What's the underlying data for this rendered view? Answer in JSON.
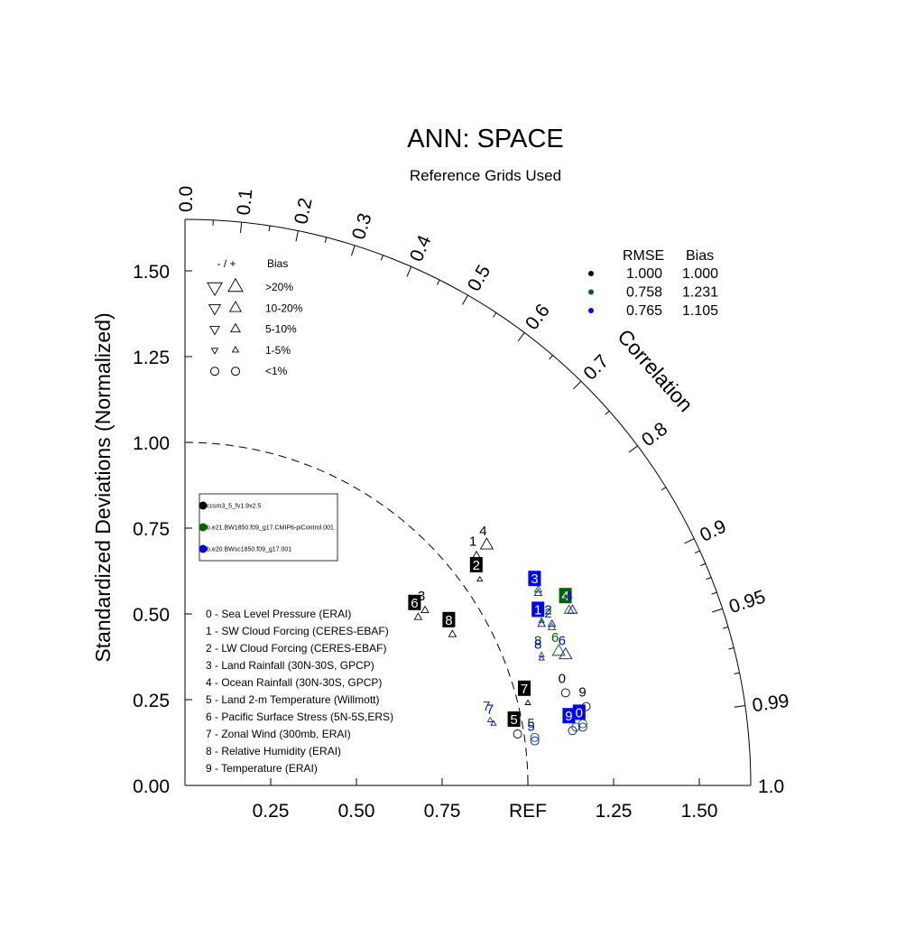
{
  "chart_data": {
    "type": "scatter",
    "title": "ANN: SPACE",
    "subtitle": "Reference Grids Used",
    "ylabel": "Standardized Deviations (Normalized)",
    "x_ticks": [
      "0.25",
      "0.50",
      "0.75",
      "REF",
      "1.25",
      "1.50"
    ],
    "y_ticks": [
      "0.00",
      "0.25",
      "0.50",
      "0.75",
      "1.00",
      "1.25",
      "1.50"
    ],
    "x_tick_values": [
      0.25,
      0.5,
      0.75,
      1.0,
      1.25,
      1.5
    ],
    "y_tick_values": [
      0,
      0.25,
      0.5,
      0.75,
      1.0,
      1.25,
      1.5
    ],
    "std_max": 1.65,
    "corr_label": "Correlation",
    "corr_ticks": [
      "0.0",
      "0.1",
      "0.2",
      "0.3",
      "0.4",
      "0.5",
      "0.6",
      "0.7",
      "0.8",
      "0.9",
      "0.95",
      "0.99",
      "1.0"
    ],
    "corr_values": [
      0.0,
      0.1,
      0.2,
      0.3,
      0.4,
      0.5,
      0.6,
      0.7,
      0.8,
      0.9,
      0.95,
      0.99,
      1.0
    ],
    "ref_arc_radius": 1.0,
    "bias_legend": {
      "header_sign": "- / +",
      "header_bias": "Bias",
      "rows": [
        ">20%",
        "10-20%",
        "5-10%",
        "1-5%",
        "<1%"
      ]
    },
    "stats_legend": {
      "header_rmse": "RMSE",
      "header_bias": "Bias",
      "rows": [
        {
          "color": "#000000",
          "rmse": "1.000",
          "bias": "1.000"
        },
        {
          "color": "#006400",
          "rmse": "0.758",
          "bias": "1.231"
        },
        {
          "color": "#0000ff",
          "rmse": "0.765",
          "bias": "1.105"
        }
      ]
    },
    "cases": [
      {
        "name": "ccsm3_5_fv1.9x2.5",
        "color": "#000000"
      },
      {
        "name": "b.e21.BW1850.f09_g17.CMIP6-piControl.001",
        "color": "#006400"
      },
      {
        "name": "b.e20.BWsc1850.f09_g17.001",
        "color": "#0000ff"
      }
    ],
    "variables": [
      "0 - Sea Level Pressure (ERAI)",
      "1 - SW Cloud Forcing (CERES-EBAF)",
      "2 - LW Cloud Forcing (CERES-EBAF)",
      "3 - Land Rainfall (30N-30S, GPCP)",
      "4 - Ocean Rainfall (30N-30S, GPCP)",
      "5 - Land 2-m Temperature (Willmott)",
      "6 - Pacific Surface Stress (5N-5S,ERS)",
      "7 - Zonal Wind (300mb, ERAI)",
      "8 - Relative Humidity (ERAI)",
      "9 - Temperature (ERAI)"
    ],
    "series": [
      {
        "name": "ccsm3_5_fv1.9x2.5",
        "color": "#000000",
        "points": [
          {
            "id": "0",
            "x": 1.11,
            "y": 0.27,
            "marker": "circle",
            "up": true,
            "size": 0,
            "boxed": false
          },
          {
            "id": "1",
            "x": 0.85,
            "y": 0.67,
            "marker": "triangle",
            "up": true,
            "size": 2,
            "boxed": false
          },
          {
            "id": "2",
            "x": 0.86,
            "y": 0.6,
            "marker": "triangle",
            "up": true,
            "size": 1,
            "boxed": true
          },
          {
            "id": "3",
            "x": 0.7,
            "y": 0.51,
            "marker": "triangle",
            "up": true,
            "size": 2,
            "boxed": false
          },
          {
            "id": "4",
            "x": 0.88,
            "y": 0.7,
            "marker": "triangle",
            "up": true,
            "size": 4,
            "boxed": false
          },
          {
            "id": "5",
            "x": 0.97,
            "y": 0.15,
            "marker": "circle",
            "up": true,
            "size": 0,
            "boxed": true
          },
          {
            "id": "6",
            "x": 0.68,
            "y": 0.49,
            "marker": "triangle",
            "up": true,
            "size": 2,
            "boxed": true
          },
          {
            "id": "7",
            "x": 1.0,
            "y": 0.24,
            "marker": "triangle",
            "up": true,
            "size": 1,
            "boxed": true
          },
          {
            "id": "8",
            "x": 0.78,
            "y": 0.44,
            "marker": "triangle",
            "up": true,
            "size": 2,
            "boxed": true
          },
          {
            "id": "9",
            "x": 1.17,
            "y": 0.23,
            "marker": "circle",
            "up": true,
            "size": 0,
            "boxed": false
          }
        ]
      },
      {
        "name": "b.e21.BW1850.f09_g17.CMIP6-piControl.001",
        "color": "#006400",
        "points": [
          {
            "id": "0",
            "x": 1.16,
            "y": 0.18,
            "marker": "circle",
            "up": true,
            "size": 0,
            "boxed": false
          },
          {
            "id": "1",
            "x": 1.04,
            "y": 0.48,
            "marker": "triangle",
            "up": true,
            "size": 1,
            "boxed": false
          },
          {
            "id": "2",
            "x": 1.07,
            "y": 0.46,
            "marker": "triangle",
            "up": true,
            "size": 2,
            "boxed": false
          },
          {
            "id": "3",
            "x": 1.03,
            "y": 0.57,
            "marker": "triangle",
            "up": true,
            "size": 2,
            "boxed": false
          },
          {
            "id": "4",
            "x": 1.12,
            "y": 0.51,
            "marker": "triangle",
            "up": true,
            "size": 3,
            "boxed": true
          },
          {
            "id": "5",
            "x": 1.02,
            "y": 0.14,
            "marker": "circle",
            "up": true,
            "size": 0,
            "boxed": false
          },
          {
            "id": "6",
            "x": 1.09,
            "y": 0.39,
            "marker": "triangle",
            "up": true,
            "size": 4,
            "boxed": false
          },
          {
            "id": "7",
            "x": 0.89,
            "y": 0.19,
            "marker": "triangle",
            "up": true,
            "size": 1,
            "boxed": false
          },
          {
            "id": "8",
            "x": 1.04,
            "y": 0.38,
            "marker": "triangle",
            "up": true,
            "size": 1,
            "boxed": false
          },
          {
            "id": "9",
            "x": 1.14,
            "y": 0.17,
            "marker": "circle",
            "up": true,
            "size": 0,
            "boxed": false
          }
        ]
      },
      {
        "name": "b.e20.BWsc1850.f09_g17.001",
        "color": "#0000ff",
        "points": [
          {
            "id": "0",
            "x": 1.16,
            "y": 0.17,
            "marker": "circle",
            "up": true,
            "size": 0,
            "boxed": true
          },
          {
            "id": "1",
            "x": 1.04,
            "y": 0.47,
            "marker": "triangle",
            "up": true,
            "size": 2,
            "boxed": true
          },
          {
            "id": "2",
            "x": 1.07,
            "y": 0.47,
            "marker": "triangle",
            "up": true,
            "size": 2,
            "boxed": false
          },
          {
            "id": "3",
            "x": 1.03,
            "y": 0.56,
            "marker": "triangle",
            "up": true,
            "size": 2,
            "boxed": true
          },
          {
            "id": "4",
            "x": 1.13,
            "y": 0.51,
            "marker": "triangle",
            "up": true,
            "size": 3,
            "boxed": false
          },
          {
            "id": "5",
            "x": 1.02,
            "y": 0.13,
            "marker": "circle",
            "up": true,
            "size": 0,
            "boxed": false
          },
          {
            "id": "6",
            "x": 1.11,
            "y": 0.38,
            "marker": "triangle",
            "up": true,
            "size": 4,
            "boxed": false
          },
          {
            "id": "7",
            "x": 0.9,
            "y": 0.18,
            "marker": "triangle",
            "up": true,
            "size": 1,
            "boxed": false
          },
          {
            "id": "8",
            "x": 1.04,
            "y": 0.37,
            "marker": "triangle",
            "up": true,
            "size": 1,
            "boxed": false
          },
          {
            "id": "9",
            "x": 1.13,
            "y": 0.16,
            "marker": "circle",
            "up": true,
            "size": 0,
            "boxed": true
          }
        ]
      }
    ]
  }
}
